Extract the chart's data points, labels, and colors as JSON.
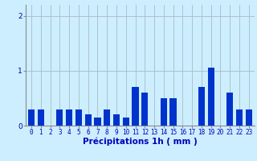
{
  "values": [
    0.3,
    0.3,
    0.0,
    0.3,
    0.3,
    0.3,
    0.2,
    0.15,
    0.3,
    0.2,
    0.15,
    0.7,
    0.6,
    0.0,
    0.5,
    0.5,
    0.0,
    0.0,
    0.7,
    1.05,
    0.0,
    0.6,
    0.3,
    0.3
  ],
  "bar_color": "#0033cc",
  "bg_color": "#cceeff",
  "xlabel": "Précipitations 1h ( mm )",
  "ylim": [
    0,
    2.2
  ],
  "yticks": [
    0,
    1,
    2
  ],
  "grid_color": "#aabbc4",
  "xlabel_color": "#0000bb",
  "tick_color": "#0000bb",
  "axis_color": "#888899",
  "xlabel_fontsize": 7.5,
  "tick_fontsize": 5.5,
  "ytick_fontsize": 6.5
}
